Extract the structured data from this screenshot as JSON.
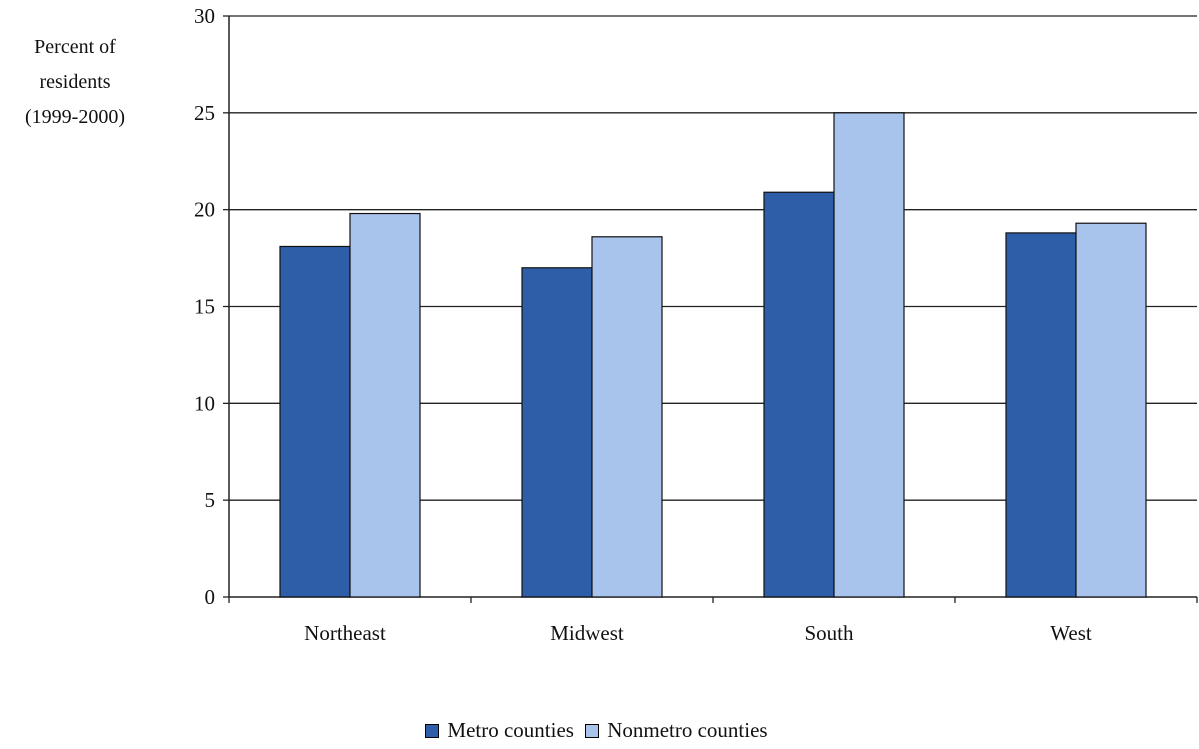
{
  "chart_data": {
    "type": "bar",
    "ylabel_lines": [
      "Percent of",
      "residents",
      "(1999-2000)"
    ],
    "categories": [
      "Northeast",
      "Midwest",
      "South",
      "West"
    ],
    "series": [
      {
        "name": "Metro counties",
        "color": "#2f5ea8",
        "values": [
          18.1,
          17.0,
          20.9,
          18.8
        ]
      },
      {
        "name": "Nonmetro counties",
        "color": "#a9c4ec",
        "values": [
          19.8,
          18.6,
          25.0,
          19.3
        ]
      }
    ],
    "ylim": [
      0,
      30
    ],
    "yticks": [
      0,
      5,
      10,
      15,
      20,
      25,
      30
    ],
    "grid": true,
    "legend_position": "bottom"
  }
}
